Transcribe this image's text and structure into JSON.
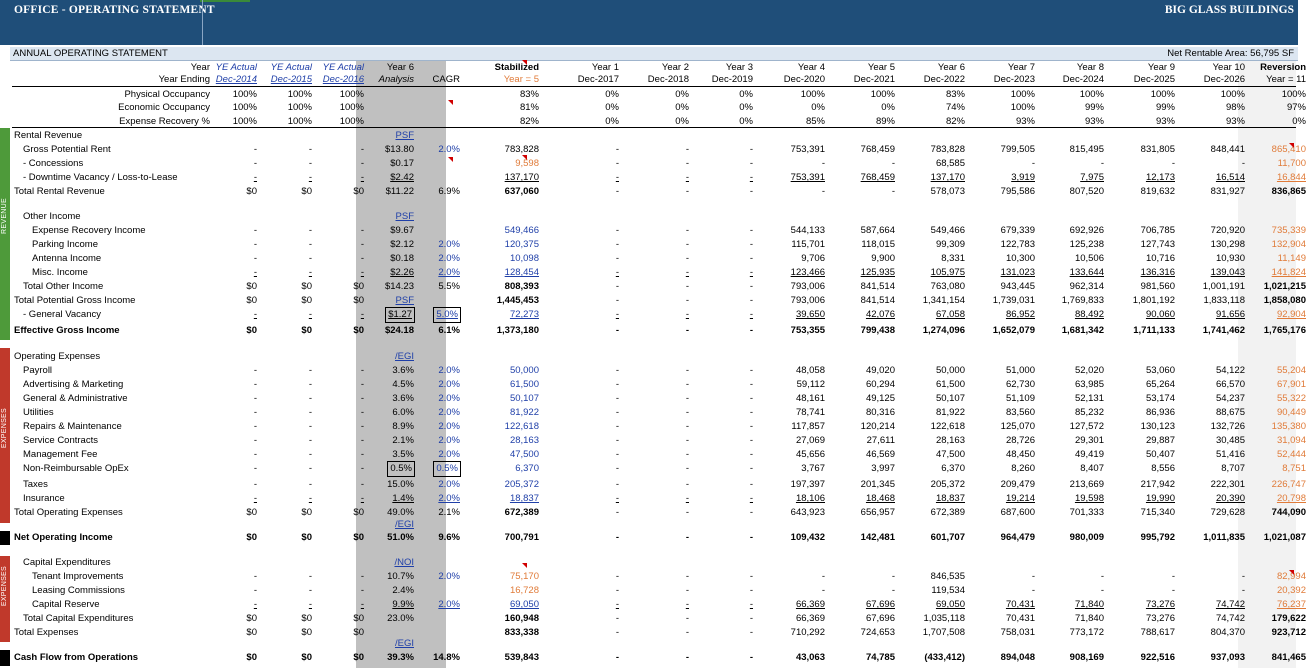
{
  "banner": {
    "title": "OFFICE - OPERATING STATEMENT",
    "company": "BIG GLASS BUILDINGS"
  },
  "subheader": {
    "left": "ANNUAL OPERATING STATEMENT",
    "right": "Net Rentable Area: 56,795 SF"
  },
  "side_bands": [
    {
      "label": "REVENUE",
      "color": "#4e9a3a"
    },
    {
      "label": "EXPENSES",
      "color": "#c0392b"
    },
    {
      "label": "EXPENSES",
      "color": "#c0392b"
    }
  ],
  "header": {
    "top": [
      "Year",
      "YE Actual",
      "YE Actual",
      "YE Actual",
      "Year 6",
      "",
      "Stabilized",
      "Year 1",
      "Year 2",
      "Year 3",
      "Year 4",
      "Year 5",
      "Year 6",
      "Year 7",
      "Year 8",
      "Year 9",
      "Year 10",
      "Reversion"
    ],
    "bottom": [
      "Year Ending",
      "Dec-2014",
      "Dec-2015",
      "Dec-2016",
      "Analysis",
      "CAGR",
      "Year = 5",
      "Dec-2017",
      "Dec-2018",
      "Dec-2019",
      "Dec-2020",
      "Dec-2021",
      "Dec-2022",
      "Dec-2023",
      "Dec-2024",
      "Dec-2025",
      "Dec-2026",
      "Year = 11"
    ]
  },
  "rows": [
    {
      "label": "Physical Occupancy",
      "indent": 2,
      "v": [
        "100%",
        "100%",
        "100%",
        "",
        "",
        "83%",
        "0%",
        "0%",
        "0%",
        "100%",
        "100%",
        "83%",
        "100%",
        "100%",
        "100%",
        "100%",
        "100%"
      ]
    },
    {
      "label": "Economic Occupancy",
      "indent": 2,
      "v": [
        "100%",
        "100%",
        "100%",
        "",
        "",
        "81%",
        "0%",
        "0%",
        "0%",
        "0%",
        "0%",
        "74%",
        "100%",
        "99%",
        "99%",
        "98%",
        "97%"
      ]
    },
    {
      "label": "Expense Recovery %",
      "indent": 2,
      "v": [
        "100%",
        "100%",
        "100%",
        "",
        "",
        "82%",
        "0%",
        "0%",
        "0%",
        "85%",
        "89%",
        "82%",
        "93%",
        "93%",
        "93%",
        "93%",
        "0%"
      ]
    },
    {
      "label": "Rental Revenue",
      "indent": 0,
      "v": [
        "",
        "",
        "",
        "PSF",
        "",
        "",
        "",
        "",
        "",
        "",
        "",
        "",
        "",
        "",
        "",
        "",
        ""
      ]
    },
    {
      "label": "Gross Potential Rent",
      "indent": 1,
      "v": [
        "-",
        "-",
        "-",
        "$13.80",
        "2.0%",
        "783,828",
        "-",
        "-",
        "-",
        "753,391",
        "768,459",
        "783,828",
        "799,505",
        "815,495",
        "831,805",
        "848,441",
        "865,410"
      ]
    },
    {
      "label": "- Concessions",
      "indent": 1,
      "v": [
        "-",
        "-",
        "-",
        "$0.17",
        "",
        "9,598",
        "-",
        "-",
        "-",
        "-",
        "-",
        "68,585",
        "-",
        "-",
        "-",
        "-",
        "11,700"
      ]
    },
    {
      "label": "- Downtime Vacancy / Loss-to-Lease",
      "indent": 1,
      "v": [
        "-",
        "-",
        "-",
        "$2.42",
        "",
        "137,170",
        "-",
        "-",
        "-",
        "753,391",
        "768,459",
        "137,170",
        "3,919",
        "7,975",
        "12,173",
        "16,514",
        "16,844"
      ]
    },
    {
      "label": "Total Rental Revenue",
      "indent": 0,
      "v": [
        "$0",
        "$0",
        "$0",
        "$11.22",
        "6.9%",
        "637,060",
        "-",
        "-",
        "-",
        "-",
        "-",
        "578,073",
        "795,586",
        "807,520",
        "819,632",
        "831,927",
        "836,865"
      ]
    },
    {
      "label": "Other Income",
      "indent": 1,
      "v": [
        "",
        "",
        "",
        "PSF",
        "",
        "",
        "",
        "",
        "",
        "",
        "",
        "",
        "",
        "",
        "",
        "",
        ""
      ]
    },
    {
      "label": "Expense Recovery Income",
      "indent": 2,
      "v": [
        "-",
        "-",
        "-",
        "$9.67",
        "",
        "549,466",
        "-",
        "-",
        "-",
        "544,133",
        "587,664",
        "549,466",
        "679,339",
        "692,926",
        "706,785",
        "720,920",
        "735,339"
      ]
    },
    {
      "label": "Parking Income",
      "indent": 2,
      "v": [
        "-",
        "-",
        "-",
        "$2.12",
        "2.0%",
        "120,375",
        "-",
        "-",
        "-",
        "115,701",
        "118,015",
        "99,309",
        "122,783",
        "125,238",
        "127,743",
        "130,298",
        "132,904"
      ]
    },
    {
      "label": "Antenna Income",
      "indent": 2,
      "v": [
        "-",
        "-",
        "-",
        "$0.18",
        "2.0%",
        "10,098",
        "-",
        "-",
        "-",
        "9,706",
        "9,900",
        "8,331",
        "10,300",
        "10,506",
        "10,716",
        "10,930",
        "11,149"
      ]
    },
    {
      "label": "Misc. Income",
      "indent": 2,
      "v": [
        "-",
        "-",
        "-",
        "$2.26",
        "2.0%",
        "128,454",
        "-",
        "-",
        "-",
        "123,466",
        "125,935",
        "105,975",
        "131,023",
        "133,644",
        "136,316",
        "139,043",
        "141,824"
      ]
    },
    {
      "label": "Total Other Income",
      "indent": 1,
      "v": [
        "$0",
        "$0",
        "$0",
        "$14.23",
        "5.5%",
        "808,393",
        "-",
        "-",
        "-",
        "793,006",
        "841,514",
        "763,080",
        "943,445",
        "962,314",
        "981,560",
        "1,001,191",
        "1,021,215"
      ]
    },
    {
      "label": "Total Potential Gross Income",
      "indent": 0,
      "v": [
        "$0",
        "$0",
        "$0",
        "PSF",
        "",
        "1,445,453",
        "-",
        "-",
        "-",
        "793,006",
        "841,514",
        "1,341,154",
        "1,739,031",
        "1,769,833",
        "1,801,192",
        "1,833,118",
        "1,858,080"
      ]
    },
    {
      "label": "- General Vacancy",
      "indent": 1,
      "v": [
        "-",
        "-",
        "-",
        "$1.27",
        "5.0%",
        "72,273",
        "-",
        "-",
        "-",
        "39,650",
        "42,076",
        "67,058",
        "86,952",
        "88,492",
        "90,060",
        "91,656",
        "92,904"
      ]
    },
    {
      "label": "Effective Gross Income",
      "indent": 0,
      "v": [
        "$0",
        "$0",
        "$0",
        "$24.18",
        "6.1%",
        "1,373,180",
        "-",
        "-",
        "-",
        "753,355",
        "799,438",
        "1,274,096",
        "1,652,079",
        "1,681,342",
        "1,711,133",
        "1,741,462",
        "1,765,176"
      ]
    },
    {
      "label": "Operating Expenses",
      "indent": 0,
      "v": [
        "",
        "",
        "",
        "/EGI",
        "",
        "",
        "",
        "",
        "",
        "",
        "",
        "",
        "",
        "",
        "",
        "",
        ""
      ]
    },
    {
      "label": "Payroll",
      "indent": 1,
      "v": [
        "-",
        "-",
        "-",
        "3.6%",
        "2.0%",
        "50,000",
        "-",
        "-",
        "-",
        "48,058",
        "49,020",
        "50,000",
        "51,000",
        "52,020",
        "53,060",
        "54,122",
        "55,204"
      ]
    },
    {
      "label": "Advertising & Marketing",
      "indent": 1,
      "v": [
        "-",
        "-",
        "-",
        "4.5%",
        "2.0%",
        "61,500",
        "-",
        "-",
        "-",
        "59,112",
        "60,294",
        "61,500",
        "62,730",
        "63,985",
        "65,264",
        "66,570",
        "67,901"
      ]
    },
    {
      "label": "General & Administrative",
      "indent": 1,
      "v": [
        "-",
        "-",
        "-",
        "3.6%",
        "2.0%",
        "50,107",
        "-",
        "-",
        "-",
        "48,161",
        "49,125",
        "50,107",
        "51,109",
        "52,131",
        "53,174",
        "54,237",
        "55,322"
      ]
    },
    {
      "label": "Utilities",
      "indent": 1,
      "v": [
        "-",
        "-",
        "-",
        "6.0%",
        "2.0%",
        "81,922",
        "-",
        "-",
        "-",
        "78,741",
        "80,316",
        "81,922",
        "83,560",
        "85,232",
        "86,936",
        "88,675",
        "90,449"
      ]
    },
    {
      "label": "Repairs & Maintenance",
      "indent": 1,
      "v": [
        "-",
        "-",
        "-",
        "8.9%",
        "2.0%",
        "122,618",
        "-",
        "-",
        "-",
        "117,857",
        "120,214",
        "122,618",
        "125,070",
        "127,572",
        "130,123",
        "132,726",
        "135,380"
      ]
    },
    {
      "label": "Service Contracts",
      "indent": 1,
      "v": [
        "-",
        "-",
        "-",
        "2.1%",
        "2.0%",
        "28,163",
        "-",
        "-",
        "-",
        "27,069",
        "27,611",
        "28,163",
        "28,726",
        "29,301",
        "29,887",
        "30,485",
        "31,094"
      ]
    },
    {
      "label": "Management Fee",
      "indent": 1,
      "v": [
        "-",
        "-",
        "-",
        "3.5%",
        "2.0%",
        "47,500",
        "-",
        "-",
        "-",
        "45,656",
        "46,569",
        "47,500",
        "48,450",
        "49,419",
        "50,407",
        "51,416",
        "52,444"
      ]
    },
    {
      "label": "Non-Reimbursable OpEx",
      "indent": 1,
      "v": [
        "-",
        "-",
        "-",
        "0.5%",
        "0.5%",
        "6,370",
        "-",
        "-",
        "-",
        "3,767",
        "3,997",
        "6,370",
        "8,260",
        "8,407",
        "8,556",
        "8,707",
        "8,751"
      ]
    },
    {
      "label": "Taxes",
      "indent": 1,
      "v": [
        "-",
        "-",
        "-",
        "15.0%",
        "2.0%",
        "205,372",
        "-",
        "-",
        "-",
        "197,397",
        "201,345",
        "205,372",
        "209,479",
        "213,669",
        "217,942",
        "222,301",
        "226,747"
      ]
    },
    {
      "label": "Insurance",
      "indent": 1,
      "v": [
        "-",
        "-",
        "-",
        "1.4%",
        "2.0%",
        "18,837",
        "-",
        "-",
        "-",
        "18,106",
        "18,468",
        "18,837",
        "19,214",
        "19,598",
        "19,990",
        "20,390",
        "20,798"
      ]
    },
    {
      "label": "Total Operating Expenses",
      "indent": 0,
      "v": [
        "$0",
        "$0",
        "$0",
        "49.0%",
        "2.1%",
        "672,389",
        "-",
        "-",
        "-",
        "643,923",
        "656,957",
        "672,389",
        "687,600",
        "701,333",
        "715,340",
        "729,628",
        "744,090"
      ]
    },
    {
      "label": "",
      "indent": 0,
      "v": [
        "",
        "",
        "",
        "/EGI",
        "",
        "",
        "",
        "",
        "",
        "",
        "",
        "",
        "",
        "",
        "",
        "",
        ""
      ]
    },
    {
      "label": "Net Operating Income",
      "indent": 0,
      "v": [
        "$0",
        "$0",
        "$0",
        "51.0%",
        "9.6%",
        "700,791",
        "-",
        "-",
        "-",
        "109,432",
        "142,481",
        "601,707",
        "964,479",
        "980,009",
        "995,792",
        "1,011,835",
        "1,021,087"
      ]
    },
    {
      "label": "Capital Expenditures",
      "indent": 1,
      "v": [
        "",
        "",
        "",
        "/NOI",
        "",
        "",
        "",
        "",
        "",
        "",
        "",
        "",
        "",
        "",
        "",
        "",
        ""
      ]
    },
    {
      "label": "Tenant Improvements",
      "indent": 2,
      "v": [
        "-",
        "-",
        "-",
        "10.7%",
        "2.0%",
        "75,170",
        "-",
        "-",
        "-",
        "-",
        "-",
        "846,535",
        "-",
        "-",
        "-",
        "-",
        "82,994"
      ]
    },
    {
      "label": "Leasing Commissions",
      "indent": 2,
      "v": [
        "-",
        "-",
        "-",
        "2.4%",
        "",
        "16,728",
        "-",
        "-",
        "-",
        "-",
        "-",
        "119,534",
        "-",
        "-",
        "-",
        "-",
        "20,392"
      ]
    },
    {
      "label": "Capital Reserve",
      "indent": 2,
      "v": [
        "-",
        "-",
        "-",
        "9.9%",
        "2.0%",
        "69,050",
        "-",
        "-",
        "-",
        "66,369",
        "67,696",
        "69,050",
        "70,431",
        "71,840",
        "73,276",
        "74,742",
        "76,237"
      ]
    },
    {
      "label": "Total Capital Expenditures",
      "indent": 1,
      "v": [
        "$0",
        "$0",
        "$0",
        "23.0%",
        "",
        "160,948",
        "-",
        "-",
        "-",
        "66,369",
        "67,696",
        "1,035,118",
        "70,431",
        "71,840",
        "73,276",
        "74,742",
        "179,622"
      ]
    },
    {
      "label": "Total Expenses",
      "indent": 0,
      "v": [
        "$0",
        "$0",
        "$0",
        "",
        "",
        "833,338",
        "-",
        "-",
        "-",
        "710,292",
        "724,653",
        "1,707,508",
        "758,031",
        "773,172",
        "788,617",
        "804,370",
        "923,712"
      ]
    },
    {
      "label": "",
      "indent": 0,
      "v": [
        "",
        "",
        "",
        "/EGI",
        "",
        "",
        "",
        "",
        "",
        "",
        "",
        "",
        "",
        "",
        "",
        "",
        ""
      ]
    },
    {
      "label": "Cash Flow from Operations",
      "indent": 0,
      "v": [
        "$0",
        "$0",
        "$0",
        "39.3%",
        "14.8%",
        "539,843",
        "-",
        "-",
        "-",
        "43,063",
        "74,785",
        "(433,412)",
        "894,048",
        "908,169",
        "922,516",
        "937,093",
        "841,465"
      ]
    }
  ]
}
